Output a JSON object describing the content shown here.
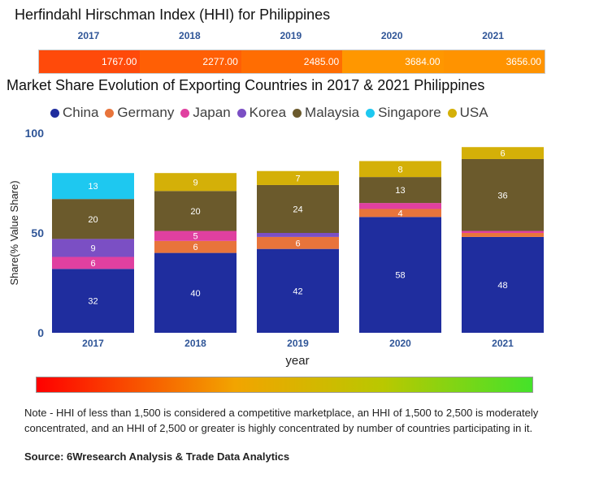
{
  "hhi": {
    "title": "Herfindahl Hirschman Index (HHI) for Philippines",
    "entries": [
      {
        "year": "2017",
        "value": "1767.00",
        "color": "#ff4a0a"
      },
      {
        "year": "2018",
        "value": "2277.00",
        "color": "#ff5f05"
      },
      {
        "year": "2019",
        "value": "2485.00",
        "color": "#ff6d02"
      },
      {
        "year": "2020",
        "value": "3684.00",
        "color": "#ff9700"
      },
      {
        "year": "2021",
        "value": "3656.00",
        "color": "#ff9300"
      }
    ]
  },
  "chart_title": "Market Share Evolution of Exporting Countries in 2017 & 2021 Philippines",
  "chart_data": {
    "type": "bar",
    "stacked": true,
    "categories": [
      "2017",
      "2018",
      "2019",
      "2020",
      "2021"
    ],
    "series": [
      {
        "name": "China",
        "color": "#1f2d9e",
        "values": [
          32,
          40,
          42,
          58,
          48
        ]
      },
      {
        "name": "Germany",
        "color": "#e8743b",
        "values": [
          null,
          6,
          6,
          4,
          2
        ]
      },
      {
        "name": "Japan",
        "color": "#e040a0",
        "values": [
          6,
          5,
          null,
          3,
          1
        ]
      },
      {
        "name": "Korea",
        "color": "#7b4fc4",
        "values": [
          9,
          null,
          2,
          null,
          null
        ]
      },
      {
        "name": "Malaysia",
        "color": "#6b5a2c",
        "values": [
          20,
          20,
          24,
          13,
          36
        ]
      },
      {
        "name": "Singapore",
        "color": "#1ec8f0",
        "values": [
          13,
          null,
          null,
          null,
          null
        ]
      },
      {
        "name": "USA",
        "color": "#d4b008",
        "values": [
          null,
          9,
          7,
          8,
          6
        ]
      }
    ],
    "min_label_value": 4,
    "yticks": [
      0,
      50,
      100
    ],
    "ylim": [
      0,
      100
    ],
    "xlabel": "year",
    "ylabel": "Share(% Value Share)",
    "legend_position": "top"
  },
  "note": "Note - HHI of less than 1,500 is considered a competitive marketplace, an HHI of 1,500 to 2,500 is moderately concentrated, and an HHI of 2,500 or greater is highly concentrated by number of countries participating in it.",
  "source": "Source: 6Wresearch Analysis & Trade Data Analytics"
}
